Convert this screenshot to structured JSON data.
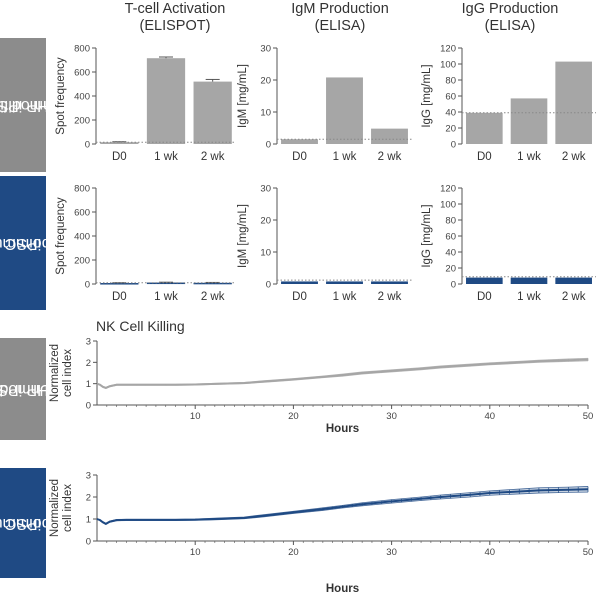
{
  "row_labels": {
    "top_unmodified": [
      "Unmodified",
      "NHP iPSC"
    ],
    "top_hypo": [
      "Hypoimmune",
      "iPSC"
    ],
    "bottom_unmodified": [
      "Unmod.",
      "NHP iPSC"
    ],
    "bottom_hypo": [
      "Hypoimmune",
      "iPSC"
    ]
  },
  "column_titles": [
    [
      "T-cell Activation",
      "(ELISPOT)"
    ],
    [
      "IgM Production",
      "(ELISA)"
    ],
    [
      "IgG Production",
      "(ELISA)"
    ]
  ],
  "colors": {
    "gray_bar": "#a6a6a6",
    "gray_box": "#8c8c8c",
    "blue": "#1f4a84",
    "axis": "#555555",
    "dotted": "#888888"
  },
  "chart_data": [
    {
      "id": "tcell_unmod",
      "type": "bar",
      "categories": [
        "D0",
        "1 wk",
        "2 wk"
      ],
      "values": [
        15,
        715,
        520
      ],
      "errors": [
        4,
        10,
        18
      ],
      "ylabel": "Spot frequency",
      "ylim": [
        0,
        800
      ],
      "yticks": [
        0,
        200,
        400,
        600,
        800
      ],
      "baseline": 15,
      "color": "#a6a6a6"
    },
    {
      "id": "igm_unmod",
      "type": "bar",
      "categories": [
        "D0",
        "1 wk",
        "2 wk"
      ],
      "values": [
        1.5,
        20.8,
        4.8
      ],
      "errors": [
        0,
        0,
        0
      ],
      "ylabel": "IgM [mg/mL]",
      "ylim": [
        0,
        30
      ],
      "yticks": [
        0,
        10,
        20,
        30
      ],
      "baseline": 1.5,
      "color": "#a6a6a6"
    },
    {
      "id": "igg_unmod",
      "type": "bar",
      "categories": [
        "D0",
        "1 wk",
        "2 wk"
      ],
      "values": [
        39,
        57,
        103
      ],
      "errors": [
        0,
        0,
        0
      ],
      "ylabel": "IgG [mg/mL]",
      "ylim": [
        0,
        120
      ],
      "yticks": [
        0,
        20,
        40,
        60,
        80,
        100,
        120
      ],
      "baseline": 39,
      "color": "#a6a6a6"
    },
    {
      "id": "tcell_hypo",
      "type": "bar",
      "categories": [
        "D0",
        "1 wk",
        "2 wk"
      ],
      "values": [
        8,
        12,
        10
      ],
      "errors": [
        3,
        3,
        3
      ],
      "ylabel": "Spot frequency",
      "ylim": [
        0,
        800
      ],
      "yticks": [
        0,
        200,
        400,
        600,
        800
      ],
      "baseline": 10,
      "color": "#1f4a84"
    },
    {
      "id": "igm_hypo",
      "type": "bar",
      "categories": [
        "D0",
        "1 wk",
        "2 wk"
      ],
      "values": [
        0.8,
        0.8,
        0.8
      ],
      "errors": [
        0,
        0,
        0
      ],
      "ylabel": "IgM [mg/mL]",
      "ylim": [
        0,
        30
      ],
      "yticks": [
        0,
        10,
        20,
        30
      ],
      "baseline": 1.2,
      "color": "#1f4a84"
    },
    {
      "id": "igg_hypo",
      "type": "bar",
      "categories": [
        "D0",
        "1 wk",
        "2 wk"
      ],
      "values": [
        8,
        8,
        8
      ],
      "errors": [
        0,
        0,
        0
      ],
      "ylabel": "IgG [mg/mL]",
      "ylim": [
        0,
        120
      ],
      "yticks": [
        0,
        20,
        40,
        60,
        80,
        100,
        120
      ],
      "baseline": 9,
      "color": "#1f4a84"
    },
    {
      "id": "nk_unmod",
      "type": "line",
      "title": "NK Cell Killing",
      "xlabel": "Hours",
      "ylabel": "Normalized cell index",
      "xlim": [
        0,
        50
      ],
      "ylim": [
        0,
        3
      ],
      "xticks": [
        10,
        20,
        30,
        40,
        50
      ],
      "yticks": [
        0,
        1,
        2,
        3
      ],
      "color": "#a6a6a6",
      "x": [
        0,
        0.3,
        0.6,
        0.9,
        1.3,
        2,
        3,
        5,
        8,
        10,
        12,
        15,
        17,
        20,
        23,
        25,
        27,
        30,
        33,
        35,
        38,
        40,
        43,
        45,
        48,
        50
      ],
      "y": [
        1.0,
        0.95,
        0.85,
        0.8,
        0.88,
        0.95,
        0.95,
        0.95,
        0.95,
        0.96,
        0.99,
        1.03,
        1.1,
        1.2,
        1.32,
        1.4,
        1.5,
        1.6,
        1.7,
        1.78,
        1.87,
        1.93,
        2.0,
        2.05,
        2.1,
        2.13
      ],
      "err": [
        0,
        0.03,
        0.03,
        0.03,
        0.03,
        0.03,
        0.03,
        0.03,
        0.03,
        0.03,
        0.03,
        0.03,
        0.04,
        0.04,
        0.04,
        0.05,
        0.05,
        0.05,
        0.05,
        0.05,
        0.05,
        0.05,
        0.05,
        0.05,
        0.06,
        0.06
      ]
    },
    {
      "id": "nk_hypo",
      "xlabel": "Hours",
      "ylabel": "Normalized cell index",
      "type": "line",
      "xlim": [
        0,
        50
      ],
      "ylim": [
        0,
        3
      ],
      "xticks": [
        10,
        20,
        30,
        40,
        50
      ],
      "yticks": [
        0,
        1,
        2,
        3
      ],
      "color": "#1f4a84",
      "x": [
        0,
        0.3,
        0.6,
        0.9,
        1.3,
        2,
        3,
        5,
        8,
        10,
        12,
        15,
        17,
        20,
        23,
        25,
        27,
        30,
        33,
        35,
        38,
        40,
        43,
        45,
        48,
        50
      ],
      "y": [
        1.0,
        0.95,
        0.85,
        0.78,
        0.88,
        0.95,
        0.96,
        0.96,
        0.96,
        0.97,
        1.0,
        1.05,
        1.15,
        1.3,
        1.45,
        1.56,
        1.67,
        1.8,
        1.92,
        2.0,
        2.1,
        2.18,
        2.25,
        2.3,
        2.33,
        2.35
      ],
      "err": [
        0,
        0.03,
        0.03,
        0.03,
        0.03,
        0.03,
        0.03,
        0.03,
        0.03,
        0.03,
        0.04,
        0.04,
        0.05,
        0.05,
        0.06,
        0.06,
        0.07,
        0.08,
        0.08,
        0.09,
        0.1,
        0.1,
        0.11,
        0.12,
        0.12,
        0.13
      ]
    }
  ]
}
